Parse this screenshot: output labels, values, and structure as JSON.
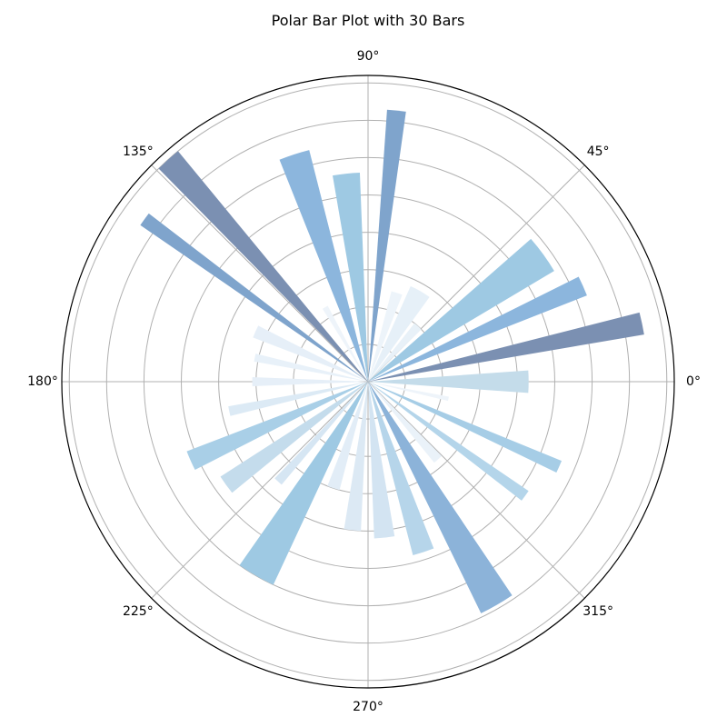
{
  "chart_data": {
    "type": "polar-bar",
    "title": "Polar Bar Plot with 30 Bars",
    "angle_unit": "degrees",
    "angular_tick_labels": [
      "0°",
      "45°",
      "90°",
      "135°",
      "180°",
      "225°",
      "270°",
      "315°"
    ],
    "angular_ticks": [
      0,
      45,
      90,
      135,
      180,
      225,
      270,
      315
    ],
    "radial_gridlines": [
      1,
      2,
      3,
      4,
      5,
      6,
      7,
      8
    ],
    "rlim": [
      0,
      8.2
    ],
    "radial_tick_labels_shown": false,
    "grid": true,
    "bars": [
      {
        "angle": 0,
        "width": 8.0,
        "value": 4.3,
        "color": "#c4dcea"
      },
      {
        "angle": 12,
        "width": 4.6,
        "value": 7.5,
        "color": "#7b90b2"
      },
      {
        "angle": 24,
        "width": 5.0,
        "value": 6.3,
        "color": "#8cb6dd"
      },
      {
        "angle": 36,
        "width": 10.5,
        "value": 5.8,
        "color": "#9ec9e3"
      },
      {
        "angle": 48,
        "width": 7.0,
        "value": 2.0,
        "color": "#e8f1f8"
      },
      {
        "angle": 60,
        "width": 12.0,
        "value": 2.8,
        "color": "#e6f0f8"
      },
      {
        "angle": 72,
        "width": 7.0,
        "value": 2.5,
        "color": "#edf4fa"
      },
      {
        "angle": 84,
        "width": 4.0,
        "value": 7.3,
        "color": "#7fa4cc"
      },
      {
        "angle": 96,
        "width": 7.5,
        "value": 5.6,
        "color": "#9ec9e3"
      },
      {
        "angle": 108,
        "width": 7.5,
        "value": 6.4,
        "color": "#8cb6dd"
      },
      {
        "angle": 120,
        "width": 4.0,
        "value": 2.3,
        "color": "#eef4fa"
      },
      {
        "angle": 132,
        "width": 5.0,
        "value": 8.0,
        "color": "#7b90b2"
      },
      {
        "angle": 144,
        "width": 3.0,
        "value": 7.4,
        "color": "#7fa4cc"
      },
      {
        "angle": 156,
        "width": 6.0,
        "value": 3.3,
        "color": "#e6eff8"
      },
      {
        "angle": 168,
        "width": 4.0,
        "value": 3.1,
        "color": "#e8f1f9"
      },
      {
        "angle": 180,
        "width": 4.5,
        "value": 3.1,
        "color": "#e6eff8"
      },
      {
        "angle": 192,
        "width": 4.0,
        "value": 3.8,
        "color": "#dceaf5"
      },
      {
        "angle": 204,
        "width": 6.0,
        "value": 5.2,
        "color": "#a9cfe7"
      },
      {
        "angle": 216,
        "width": 6.5,
        "value": 4.7,
        "color": "#c4dcec"
      },
      {
        "angle": 228,
        "width": 4.0,
        "value": 3.6,
        "color": "#d6e6f3"
      },
      {
        "angle": 240,
        "width": 10.0,
        "value": 6.0,
        "color": "#9ec9e3"
      },
      {
        "angle": 252,
        "width": 6.5,
        "value": 3.0,
        "color": "#e2edf7"
      },
      {
        "angle": 264,
        "width": 6.5,
        "value": 4.0,
        "color": "#dce9f4"
      },
      {
        "angle": 276,
        "width": 7.5,
        "value": 4.2,
        "color": "#d3e4f2"
      },
      {
        "angle": 288,
        "width": 7.0,
        "value": 4.8,
        "color": "#b6d5ea"
      },
      {
        "angle": 300,
        "width": 8.0,
        "value": 6.9,
        "color": "#8cb3d9"
      },
      {
        "angle": 312,
        "width": 5.5,
        "value": 2.8,
        "color": "#eaf2f9"
      },
      {
        "angle": 324,
        "width": 3.5,
        "value": 5.2,
        "color": "#b4d5ea"
      },
      {
        "angle": 336,
        "width": 3.5,
        "value": 5.6,
        "color": "#a6cde6"
      },
      {
        "angle": 348,
        "width": 3.0,
        "value": 2.2,
        "color": "#eef4fa"
      }
    ]
  }
}
